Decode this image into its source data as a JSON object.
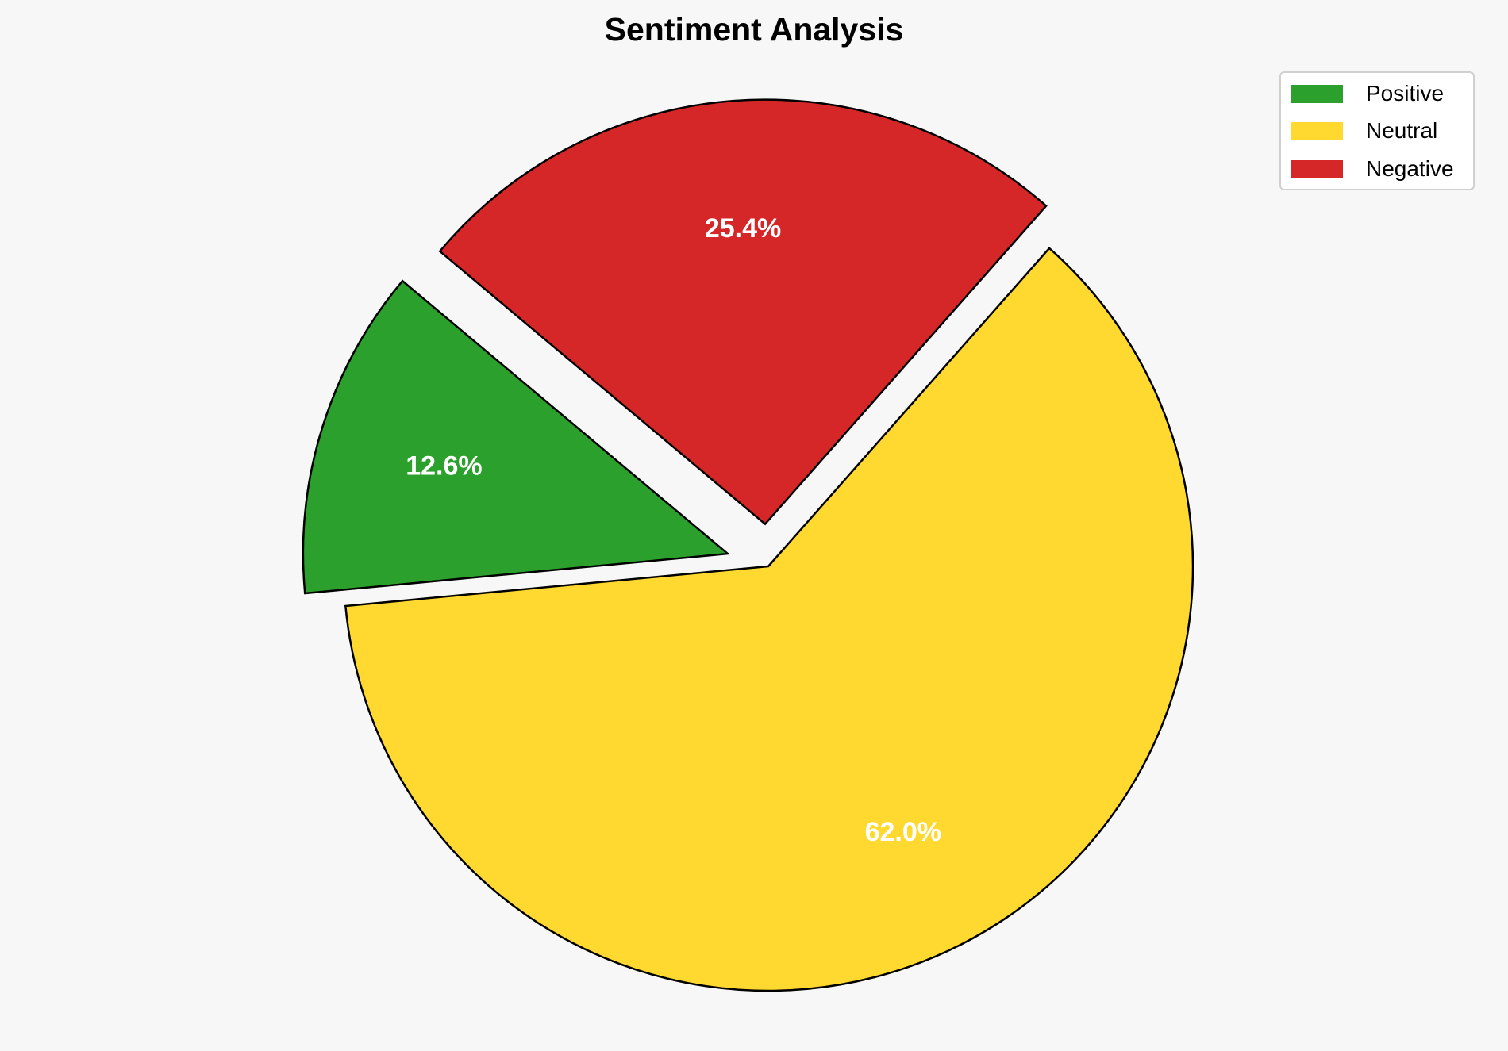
{
  "chart_data": {
    "type": "pie",
    "title": "Sentiment Analysis",
    "categories": [
      "Positive",
      "Neutral",
      "Negative"
    ],
    "values": [
      12.6,
      62.0,
      25.4
    ],
    "labels": [
      "12.6%",
      "62.0%",
      "25.4%"
    ],
    "colors": [
      "#2ca02c",
      "#ffd92f",
      "#d62728"
    ],
    "explode": [
      0.1,
      0,
      0.1
    ],
    "start_angle": 140,
    "counterclockwise": true,
    "edge_color": "#000000",
    "label_color": "#ffffff",
    "legend_placement": "top-right"
  }
}
